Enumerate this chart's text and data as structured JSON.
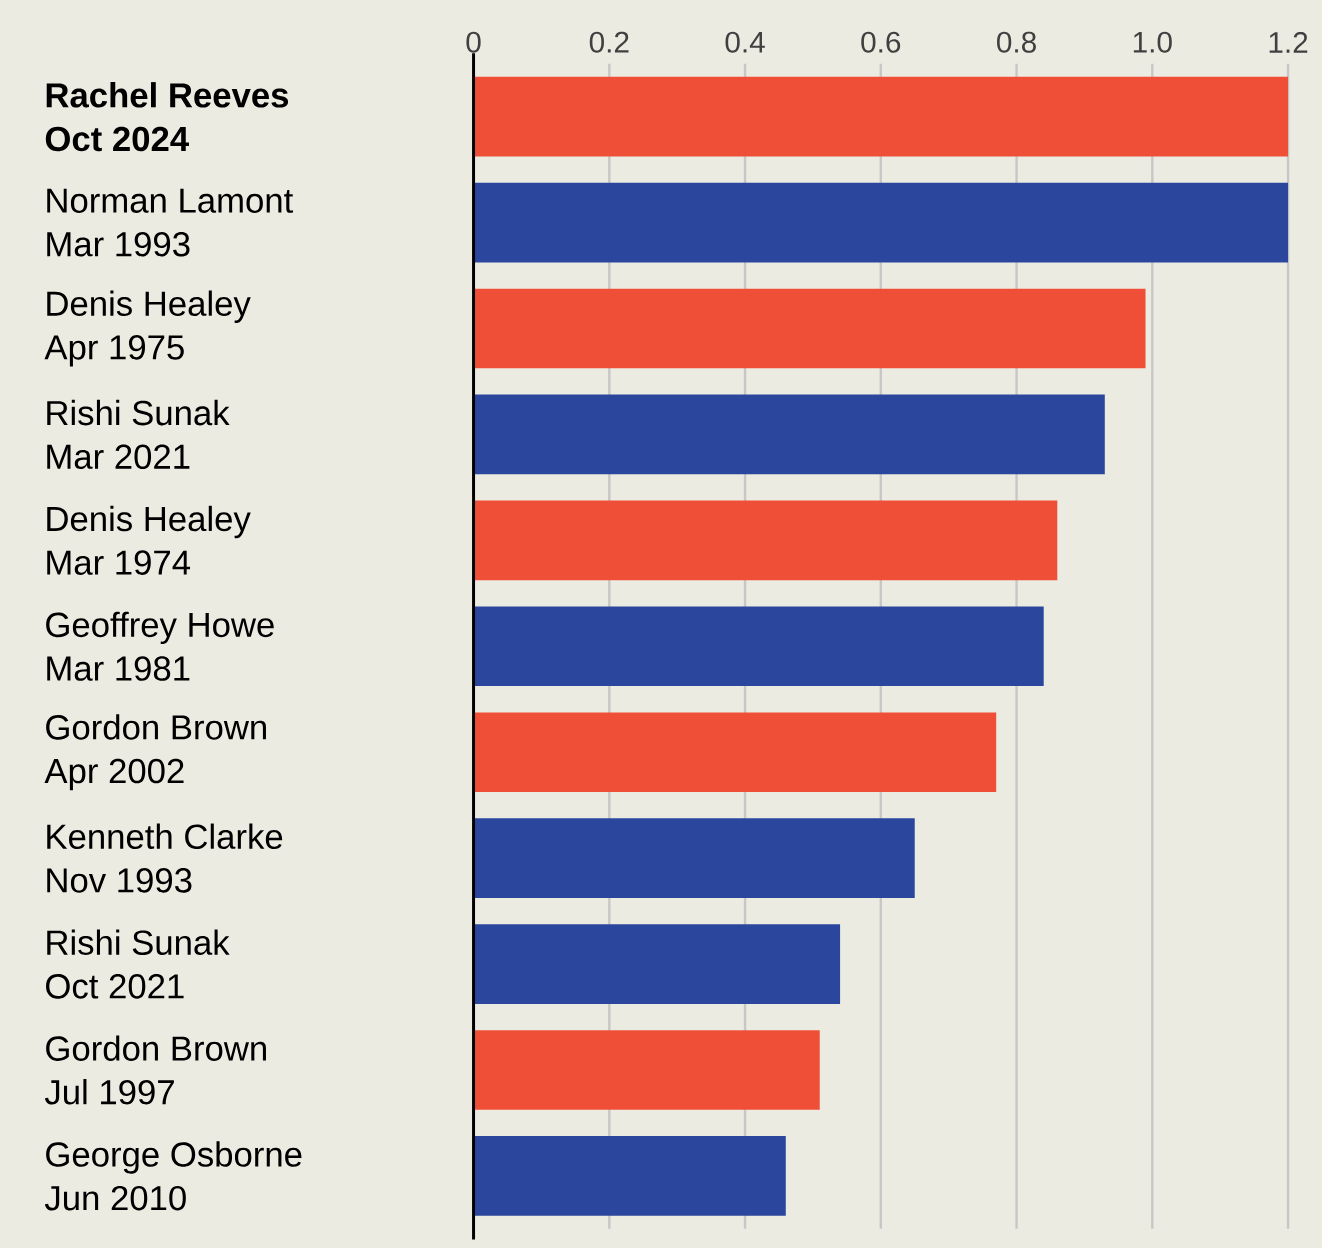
{
  "chart_data": {
    "type": "bar",
    "orientation": "horizontal",
    "categories": [
      "**Rachel Reeves**\n**Oct 2024**",
      "Norman Lamont\nMar 1993",
      "Denis Healey\nApr 1975",
      "Rishi Sunak\nMar 2021",
      "Denis Healey\nMar 1974",
      "Geoffrey Howe\nMar 1981",
      "Gordon Brown\nApr 2002",
      "Kenneth Clarke\nNov 1993",
      "Rishi Sunak\nOct 2021",
      "Gordon Brown\nJul 1997",
      "George Osborne\nJun 2010"
    ],
    "values": [
      1.2,
      1.2,
      0.99,
      0.93,
      0.86,
      0.84,
      0.77,
      0.65,
      0.54,
      0.51,
      0.46
    ],
    "colors": [
      "#ef4f37",
      "#2a479d",
      "#ef4f37",
      "#2a479d",
      "#ef4f37",
      "#2a479d",
      "#ef4f37",
      "#2a479d",
      "#2a479d",
      "#ef4f37",
      "#2a479d"
    ],
    "xlim": [
      0,
      1.25
    ],
    "xticks": [
      0,
      0.2,
      0.4,
      0.6,
      0.8,
      {
        "value": 1.0,
        "label": "1.0"
      },
      1.2
    ],
    "grid": "x"
  }
}
